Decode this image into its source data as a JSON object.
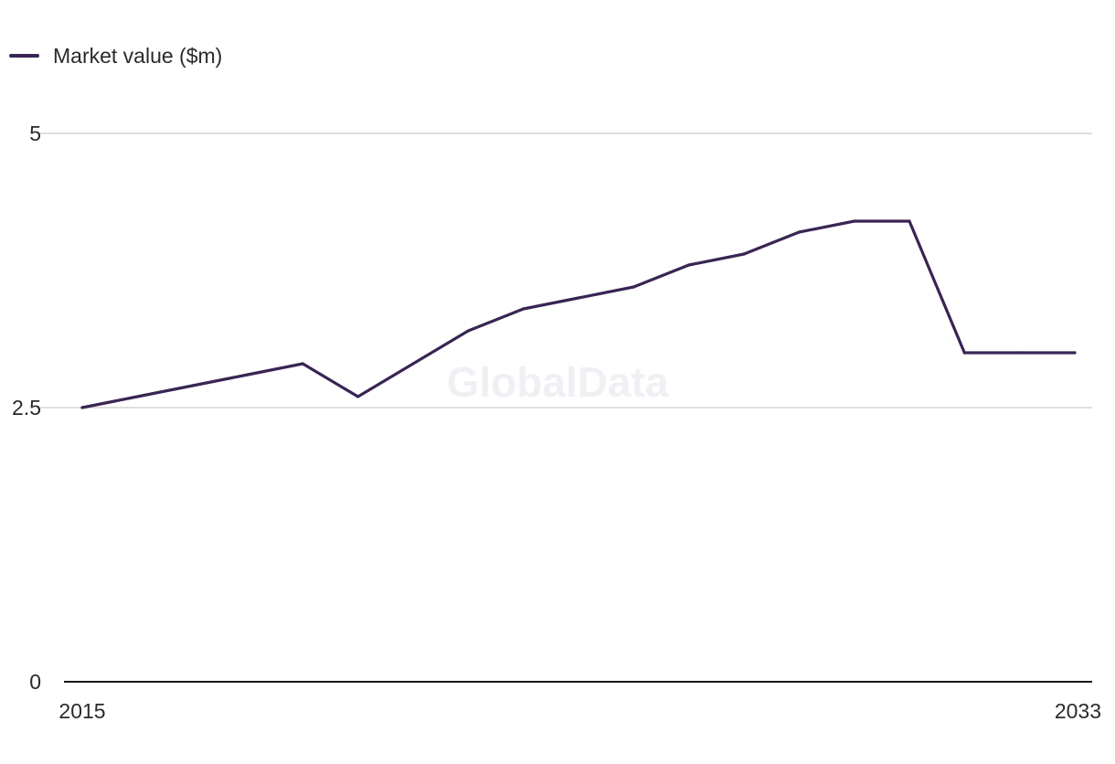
{
  "chart_data": {
    "type": "line",
    "title": "",
    "xlabel": "",
    "ylabel": "",
    "watermark": "GlobalData",
    "x": [
      2015,
      2016,
      2017,
      2018,
      2019,
      2020,
      2021,
      2022,
      2023,
      2024,
      2025,
      2026,
      2027,
      2028,
      2029,
      2030,
      2031,
      2032,
      2033
    ],
    "x_tick_labels": [
      "2015",
      "2033"
    ],
    "xlim": [
      2015,
      2033
    ],
    "y_ticks": [
      0,
      2.5,
      5
    ],
    "y_tick_labels": [
      "0",
      "2.5",
      "5"
    ],
    "ylim": [
      0,
      5
    ],
    "grid": true,
    "legend_position": "top-left",
    "series": [
      {
        "name": "Market value ($m)",
        "color": "#3a2454",
        "values": [
          2.5,
          2.6,
          2.7,
          2.8,
          2.9,
          2.6,
          2.9,
          3.2,
          3.4,
          3.5,
          3.6,
          3.8,
          3.9,
          4.1,
          4.2,
          4.2,
          3.0,
          3.0,
          3.0
        ]
      }
    ]
  }
}
